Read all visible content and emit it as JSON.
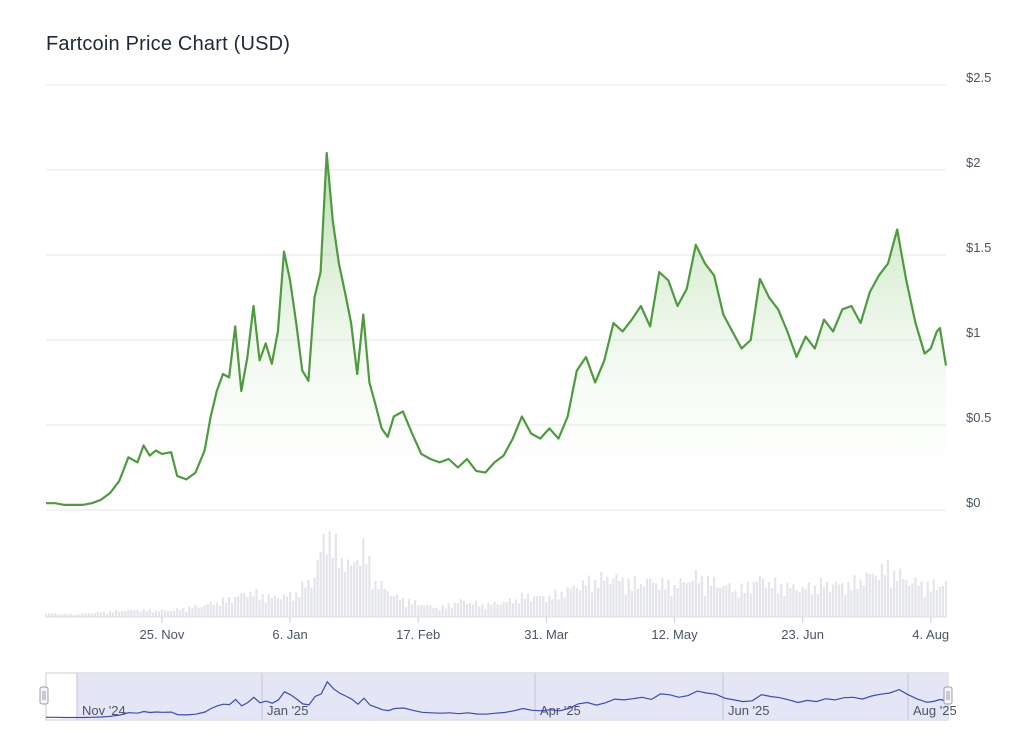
{
  "title": "Fartcoin Price Chart (USD)",
  "colors": {
    "line": "#4e9a3e",
    "area_top": "#7cc46b",
    "grid": "#e6e7eb",
    "volume": "#e3e5ea",
    "axis_text": "#4b5563",
    "navigator_fill": "#dfe1f3",
    "navigator_line": "#3d4ab8"
  },
  "chart_data": {
    "type": "area",
    "title": "Fartcoin Price Chart (USD)",
    "xlabel": "",
    "ylabel": "",
    "y_axis_position": "right",
    "grid": true,
    "ylim": [
      0,
      2.5
    ],
    "y_ticks": [
      {
        "value": 0,
        "label": "$0"
      },
      {
        "value": 0.5,
        "label": "$0.5"
      },
      {
        "value": 1,
        "label": "$1"
      },
      {
        "value": 1.5,
        "label": "$1.5"
      },
      {
        "value": 2,
        "label": "$2"
      },
      {
        "value": 2.5,
        "label": "$2.5"
      }
    ],
    "x_range": [
      "2024-10-18",
      "2025-08-09"
    ],
    "x_ticks": [
      {
        "date": "2024-11-25",
        "label": "25. Nov"
      },
      {
        "date": "2025-01-06",
        "label": "6. Jan"
      },
      {
        "date": "2025-02-17",
        "label": "17. Feb"
      },
      {
        "date": "2025-03-31",
        "label": "31. Mar"
      },
      {
        "date": "2025-05-12",
        "label": "12. May"
      },
      {
        "date": "2025-06-23",
        "label": "23. Jun"
      },
      {
        "date": "2025-08-04",
        "label": "4. Aug"
      }
    ],
    "series": [
      {
        "points": [
          [
            "2024-10-18",
            0.04
          ],
          [
            "2024-10-21",
            0.04
          ],
          [
            "2024-10-24",
            0.03
          ],
          [
            "2024-10-27",
            0.03
          ],
          [
            "2024-10-30",
            0.03
          ],
          [
            "2024-11-02",
            0.04
          ],
          [
            "2024-11-05",
            0.06
          ],
          [
            "2024-11-08",
            0.1
          ],
          [
            "2024-11-11",
            0.17
          ],
          [
            "2024-11-14",
            0.31
          ],
          [
            "2024-11-17",
            0.28
          ],
          [
            "2024-11-19",
            0.38
          ],
          [
            "2024-11-21",
            0.32
          ],
          [
            "2024-11-23",
            0.35
          ],
          [
            "2024-11-25",
            0.33
          ],
          [
            "2024-11-28",
            0.34
          ],
          [
            "2024-11-30",
            0.2
          ],
          [
            "2024-12-03",
            0.18
          ],
          [
            "2024-12-06",
            0.22
          ],
          [
            "2024-12-09",
            0.35
          ],
          [
            "2024-12-11",
            0.55
          ],
          [
            "2024-12-13",
            0.7
          ],
          [
            "2024-12-15",
            0.8
          ],
          [
            "2024-12-17",
            0.78
          ],
          [
            "2024-12-19",
            1.08
          ],
          [
            "2024-12-21",
            0.7
          ],
          [
            "2024-12-23",
            0.9
          ],
          [
            "2024-12-25",
            1.2
          ],
          [
            "2024-12-27",
            0.88
          ],
          [
            "2024-12-29",
            0.98
          ],
          [
            "2024-12-31",
            0.86
          ],
          [
            "2025-01-02",
            1.05
          ],
          [
            "2025-01-04",
            1.52
          ],
          [
            "2025-01-06",
            1.35
          ],
          [
            "2025-01-08",
            1.1
          ],
          [
            "2025-01-10",
            0.82
          ],
          [
            "2025-01-12",
            0.76
          ],
          [
            "2025-01-14",
            1.25
          ],
          [
            "2025-01-16",
            1.4
          ],
          [
            "2025-01-18",
            2.1
          ],
          [
            "2025-01-20",
            1.7
          ],
          [
            "2025-01-22",
            1.45
          ],
          [
            "2025-01-24",
            1.28
          ],
          [
            "2025-01-26",
            1.1
          ],
          [
            "2025-01-28",
            0.8
          ],
          [
            "2025-01-30",
            1.15
          ],
          [
            "2025-02-01",
            0.75
          ],
          [
            "2025-02-03",
            0.62
          ],
          [
            "2025-02-05",
            0.48
          ],
          [
            "2025-02-07",
            0.43
          ],
          [
            "2025-02-09",
            0.55
          ],
          [
            "2025-02-12",
            0.58
          ],
          [
            "2025-02-15",
            0.45
          ],
          [
            "2025-02-18",
            0.33
          ],
          [
            "2025-02-21",
            0.3
          ],
          [
            "2025-02-24",
            0.28
          ],
          [
            "2025-02-27",
            0.3
          ],
          [
            "2025-03-02",
            0.25
          ],
          [
            "2025-03-05",
            0.3
          ],
          [
            "2025-03-08",
            0.23
          ],
          [
            "2025-03-11",
            0.22
          ],
          [
            "2025-03-14",
            0.28
          ],
          [
            "2025-03-17",
            0.32
          ],
          [
            "2025-03-20",
            0.42
          ],
          [
            "2025-03-23",
            0.55
          ],
          [
            "2025-03-26",
            0.45
          ],
          [
            "2025-03-29",
            0.42
          ],
          [
            "2025-04-01",
            0.48
          ],
          [
            "2025-04-04",
            0.42
          ],
          [
            "2025-04-07",
            0.55
          ],
          [
            "2025-04-10",
            0.82
          ],
          [
            "2025-04-13",
            0.9
          ],
          [
            "2025-04-16",
            0.75
          ],
          [
            "2025-04-19",
            0.88
          ],
          [
            "2025-04-22",
            1.1
          ],
          [
            "2025-04-25",
            1.05
          ],
          [
            "2025-04-28",
            1.12
          ],
          [
            "2025-05-01",
            1.2
          ],
          [
            "2025-05-04",
            1.08
          ],
          [
            "2025-05-07",
            1.4
          ],
          [
            "2025-05-10",
            1.35
          ],
          [
            "2025-05-13",
            1.2
          ],
          [
            "2025-05-16",
            1.3
          ],
          [
            "2025-05-19",
            1.56
          ],
          [
            "2025-05-22",
            1.45
          ],
          [
            "2025-05-25",
            1.38
          ],
          [
            "2025-05-28",
            1.15
          ],
          [
            "2025-05-31",
            1.05
          ],
          [
            "2025-06-03",
            0.95
          ],
          [
            "2025-06-06",
            1.0
          ],
          [
            "2025-06-09",
            1.36
          ],
          [
            "2025-06-12",
            1.25
          ],
          [
            "2025-06-15",
            1.18
          ],
          [
            "2025-06-18",
            1.05
          ],
          [
            "2025-06-21",
            0.9
          ],
          [
            "2025-06-24",
            1.02
          ],
          [
            "2025-06-27",
            0.95
          ],
          [
            "2025-06-30",
            1.12
          ],
          [
            "2025-07-03",
            1.05
          ],
          [
            "2025-07-06",
            1.18
          ],
          [
            "2025-07-09",
            1.2
          ],
          [
            "2025-07-12",
            1.1
          ],
          [
            "2025-07-15",
            1.28
          ],
          [
            "2025-07-18",
            1.38
          ],
          [
            "2025-07-21",
            1.45
          ],
          [
            "2025-07-24",
            1.65
          ],
          [
            "2025-07-27",
            1.35
          ],
          [
            "2025-07-30",
            1.1
          ],
          [
            "2025-08-02",
            0.92
          ],
          [
            "2025-08-04",
            0.95
          ],
          [
            "2025-08-06",
            1.05
          ],
          [
            "2025-08-07",
            1.07
          ],
          [
            "2025-08-09",
            0.85
          ]
        ]
      }
    ],
    "volume": {
      "ylim": [
        0,
        100
      ],
      "points": [
        [
          "2024-10-18",
          4
        ],
        [
          "2024-10-28",
          3
        ],
        [
          "2024-11-07",
          6
        ],
        [
          "2024-11-17",
          8
        ],
        [
          "2024-11-27",
          7
        ],
        [
          "2024-12-07",
          12
        ],
        [
          "2024-12-17",
          20
        ],
        [
          "2024-12-24",
          28
        ],
        [
          "2024-12-31",
          22
        ],
        [
          "2025-01-07",
          25
        ],
        [
          "2025-01-14",
          45
        ],
        [
          "2025-01-18",
          100
        ],
        [
          "2025-01-22",
          70
        ],
        [
          "2025-01-26",
          55
        ],
        [
          "2025-01-30",
          78
        ],
        [
          "2025-02-03",
          40
        ],
        [
          "2025-02-10",
          22
        ],
        [
          "2025-02-17",
          15
        ],
        [
          "2025-02-24",
          10
        ],
        [
          "2025-03-03",
          18
        ],
        [
          "2025-03-10",
          14
        ],
        [
          "2025-03-17",
          16
        ],
        [
          "2025-03-24",
          24
        ],
        [
          "2025-03-31",
          22
        ],
        [
          "2025-04-07",
          30
        ],
        [
          "2025-04-14",
          40
        ],
        [
          "2025-04-21",
          45
        ],
        [
          "2025-04-28",
          38
        ],
        [
          "2025-05-05",
          40
        ],
        [
          "2025-05-12",
          35
        ],
        [
          "2025-05-19",
          45
        ],
        [
          "2025-05-26",
          38
        ],
        [
          "2025-06-02",
          30
        ],
        [
          "2025-06-09",
          42
        ],
        [
          "2025-06-16",
          35
        ],
        [
          "2025-06-23",
          32
        ],
        [
          "2025-06-30",
          38
        ],
        [
          "2025-07-07",
          35
        ],
        [
          "2025-07-14",
          45
        ],
        [
          "2025-07-21",
          55
        ],
        [
          "2025-07-28",
          40
        ],
        [
          "2025-08-04",
          35
        ],
        [
          "2025-08-09",
          38
        ]
      ]
    },
    "navigator": {
      "labels": [
        "Nov '24",
        "Jan '25",
        "Apr '25",
        "Jun '25",
        "Aug '25"
      ]
    }
  }
}
